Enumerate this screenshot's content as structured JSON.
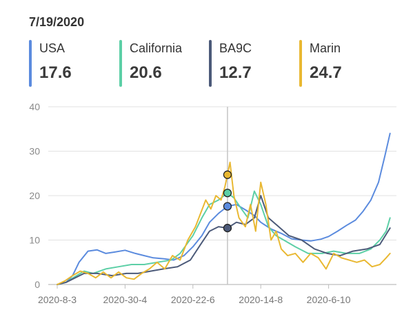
{
  "header": {
    "date": "7/19/2020"
  },
  "legend": [
    {
      "name": "USA",
      "value": "17.6",
      "color": "#5b8bde"
    },
    {
      "name": "California",
      "value": "20.6",
      "color": "#5ccfa6"
    },
    {
      "name": "BA9C",
      "value": "12.7",
      "color": "#4c5a79"
    },
    {
      "name": "Marin",
      "value": "24.7",
      "color": "#e9b832"
    }
  ],
  "chart_data": {
    "type": "line",
    "xlabel": "",
    "ylabel": "",
    "ylim": [
      0,
      40
    ],
    "yticks": [
      0,
      10,
      20,
      30,
      40
    ],
    "xlim": [
      "2020-03-01",
      "2020-11-28"
    ],
    "xticks": [
      {
        "label": "2020-8-3",
        "date": "2020-03-08"
      },
      {
        "label": "2020-30-4",
        "date": "2020-04-30"
      },
      {
        "label": "2020-22-6",
        "date": "2020-06-22"
      },
      {
        "label": "2020-14-8",
        "date": "2020-08-14"
      },
      {
        "label": "2020-6-10",
        "date": "2020-10-06"
      }
    ],
    "cursor": {
      "date": "2020-07-19"
    },
    "grid": "horizontal",
    "series": [
      {
        "name": "USA",
        "color": "#5b8bde",
        "x": [
          "2020-03-08",
          "2020-03-15",
          "2020-03-20",
          "2020-03-25",
          "2020-04-01",
          "2020-04-08",
          "2020-04-15",
          "2020-04-22",
          "2020-04-30",
          "2020-05-08",
          "2020-05-15",
          "2020-05-22",
          "2020-05-30",
          "2020-06-07",
          "2020-06-15",
          "2020-06-22",
          "2020-06-29",
          "2020-07-05",
          "2020-07-12",
          "2020-07-19",
          "2020-07-26",
          "2020-08-02",
          "2020-08-09",
          "2020-08-14",
          "2020-08-22",
          "2020-08-30",
          "2020-09-07",
          "2020-09-15",
          "2020-09-22",
          "2020-09-30",
          "2020-10-06",
          "2020-10-13",
          "2020-10-20",
          "2020-10-27",
          "2020-11-02",
          "2020-11-08",
          "2020-11-14",
          "2020-11-19",
          "2020-11-23"
        ],
        "y": [
          0,
          0.5,
          2,
          5,
          7.5,
          7.8,
          7,
          7.3,
          7.7,
          7,
          6.5,
          6,
          5.8,
          5.5,
          6.5,
          8.5,
          11,
          14,
          16,
          17.6,
          18,
          16.8,
          15.5,
          14,
          12.5,
          11.5,
          10.3,
          10,
          9.8,
          10.2,
          10.8,
          12,
          13.3,
          14.5,
          16.5,
          19,
          23,
          29,
          34
        ]
      },
      {
        "name": "California",
        "color": "#5ccfa6",
        "x": [
          "2020-03-08",
          "2020-03-15",
          "2020-03-22",
          "2020-03-29",
          "2020-04-05",
          "2020-04-15",
          "2020-04-25",
          "2020-05-05",
          "2020-05-15",
          "2020-05-25",
          "2020-06-05",
          "2020-06-12",
          "2020-06-22",
          "2020-06-29",
          "2020-07-05",
          "2020-07-12",
          "2020-07-19",
          "2020-07-24",
          "2020-07-30",
          "2020-08-04",
          "2020-08-09",
          "2020-08-14",
          "2020-08-20",
          "2020-08-26",
          "2020-09-01",
          "2020-09-10",
          "2020-09-20",
          "2020-10-01",
          "2020-10-10",
          "2020-10-20",
          "2020-10-30",
          "2020-11-08",
          "2020-11-15",
          "2020-11-20",
          "2020-11-23"
        ],
        "y": [
          0,
          0.5,
          1.8,
          3,
          2.5,
          3.5,
          4,
          4.5,
          4.5,
          5,
          5.5,
          7,
          11,
          15,
          18,
          19,
          20.6,
          19.5,
          17,
          15,
          21,
          18,
          13,
          11,
          10,
          8.5,
          7,
          7,
          7.5,
          7,
          7,
          8,
          10,
          12,
          15
        ]
      },
      {
        "name": "BA9C",
        "color": "#4c5a79",
        "x": [
          "2020-03-08",
          "2020-03-15",
          "2020-03-22",
          "2020-03-29",
          "2020-04-08",
          "2020-04-20",
          "2020-05-01",
          "2020-05-10",
          "2020-05-20",
          "2020-05-30",
          "2020-06-10",
          "2020-06-20",
          "2020-06-28",
          "2020-07-05",
          "2020-07-12",
          "2020-07-19",
          "2020-07-26",
          "2020-08-02",
          "2020-08-09",
          "2020-08-14",
          "2020-08-20",
          "2020-08-28",
          "2020-09-05",
          "2020-09-15",
          "2020-09-25",
          "2020-10-05",
          "2020-10-15",
          "2020-10-25",
          "2020-11-05",
          "2020-11-15",
          "2020-11-23"
        ],
        "y": [
          0,
          0.5,
          1.5,
          2.5,
          2.5,
          2,
          2.5,
          2.5,
          3,
          3.5,
          4,
          5.5,
          9,
          12,
          13,
          12.7,
          14,
          13.5,
          15,
          20,
          15,
          13,
          11,
          10,
          8,
          7,
          6.5,
          7.5,
          8,
          9,
          12.7
        ]
      },
      {
        "name": "Marin",
        "color": "#e9b832",
        "x": [
          "2020-03-08",
          "2020-03-14",
          "2020-03-20",
          "2020-03-26",
          "2020-04-01",
          "2020-04-07",
          "2020-04-13",
          "2020-04-19",
          "2020-04-25",
          "2020-05-01",
          "2020-05-07",
          "2020-05-13",
          "2020-05-19",
          "2020-05-25",
          "2020-05-31",
          "2020-06-06",
          "2020-06-12",
          "2020-06-18",
          "2020-06-24",
          "2020-06-28",
          "2020-07-02",
          "2020-07-06",
          "2020-07-10",
          "2020-07-14",
          "2020-07-17",
          "2020-07-19",
          "2020-07-21",
          "2020-07-24",
          "2020-07-28",
          "2020-08-02",
          "2020-08-06",
          "2020-08-10",
          "2020-08-14",
          "2020-08-18",
          "2020-08-22",
          "2020-08-26",
          "2020-08-30",
          "2020-09-04",
          "2020-09-10",
          "2020-09-16",
          "2020-09-22",
          "2020-09-28",
          "2020-10-04",
          "2020-10-10",
          "2020-10-16",
          "2020-10-22",
          "2020-10-28",
          "2020-11-03",
          "2020-11-09",
          "2020-11-15",
          "2020-11-20",
          "2020-11-23"
        ],
        "y": [
          0,
          0.8,
          2,
          3,
          2.5,
          1.5,
          2.8,
          1.5,
          2.8,
          1.5,
          1.2,
          2.5,
          3.5,
          5,
          3.5,
          6.5,
          5.5,
          10,
          13,
          16,
          19,
          17,
          20,
          19,
          22,
          24.7,
          27.5,
          20,
          15,
          13,
          18,
          12,
          23,
          18,
          10,
          12,
          8,
          6.5,
          7,
          5,
          7,
          6,
          3.5,
          7,
          6,
          5.5,
          5,
          5.5,
          4,
          4.5,
          6,
          7
        ]
      }
    ]
  }
}
